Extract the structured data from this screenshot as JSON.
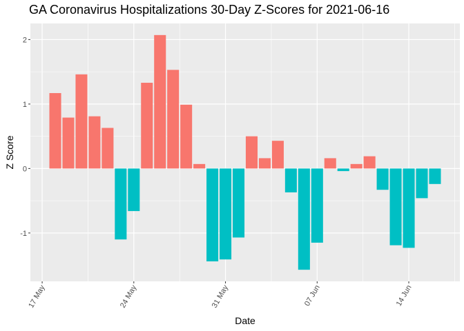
{
  "chart_data": {
    "type": "bar",
    "title": "GA Coronavirus Hospitalizations 30-Day Z-Scores for 2021-06-16",
    "xlabel": "Date",
    "ylabel": "Z Score",
    "ylim": [
      -1.75,
      2.25
    ],
    "y_ticks": [
      -1,
      0,
      1,
      2
    ],
    "y_tick_labels": [
      "-1",
      "0",
      "1",
      "2"
    ],
    "x_ticks": [
      {
        "label": "17 May",
        "day": 0
      },
      {
        "label": "24 May",
        "day": 7
      },
      {
        "label": "31 May",
        "day": 14
      },
      {
        "label": "07 Jun",
        "day": 21
      },
      {
        "label": "14 Jun",
        "day": 28
      }
    ],
    "x_range_days": [
      -0.9,
      31.9
    ],
    "grid": true,
    "colors": {
      "positive": "#F8766D",
      "negative": "#00BFC4",
      "panel": "#EBEBEB",
      "grid": "#FFFFFF"
    },
    "series": [
      {
        "name": "Z Score",
        "dates": [
          "2021-05-18",
          "2021-05-19",
          "2021-05-20",
          "2021-05-21",
          "2021-05-22",
          "2021-05-23",
          "2021-05-24",
          "2021-05-25",
          "2021-05-26",
          "2021-05-27",
          "2021-05-28",
          "2021-05-29",
          "2021-05-30",
          "2021-05-31",
          "2021-06-01",
          "2021-06-02",
          "2021-06-03",
          "2021-06-04",
          "2021-06-05",
          "2021-06-06",
          "2021-06-07",
          "2021-06-08",
          "2021-06-09",
          "2021-06-10",
          "2021-06-11",
          "2021-06-12",
          "2021-06-13",
          "2021-06-14",
          "2021-06-15",
          "2021-06-16"
        ],
        "days": [
          1,
          2,
          3,
          4,
          5,
          6,
          7,
          8,
          9,
          10,
          11,
          12,
          13,
          14,
          15,
          16,
          17,
          18,
          19,
          20,
          21,
          22,
          23,
          24,
          25,
          26,
          27,
          28,
          29,
          30
        ],
        "values": [
          1.17,
          0.79,
          1.46,
          0.81,
          0.63,
          -1.1,
          -0.66,
          1.33,
          2.07,
          1.53,
          0.99,
          0.07,
          -1.44,
          -1.41,
          -1.07,
          0.5,
          0.16,
          0.43,
          -0.37,
          -1.57,
          -1.15,
          0.16,
          -0.04,
          0.07,
          0.19,
          -0.33,
          -1.19,
          -1.23,
          -0.46,
          -0.24
        ]
      }
    ]
  }
}
